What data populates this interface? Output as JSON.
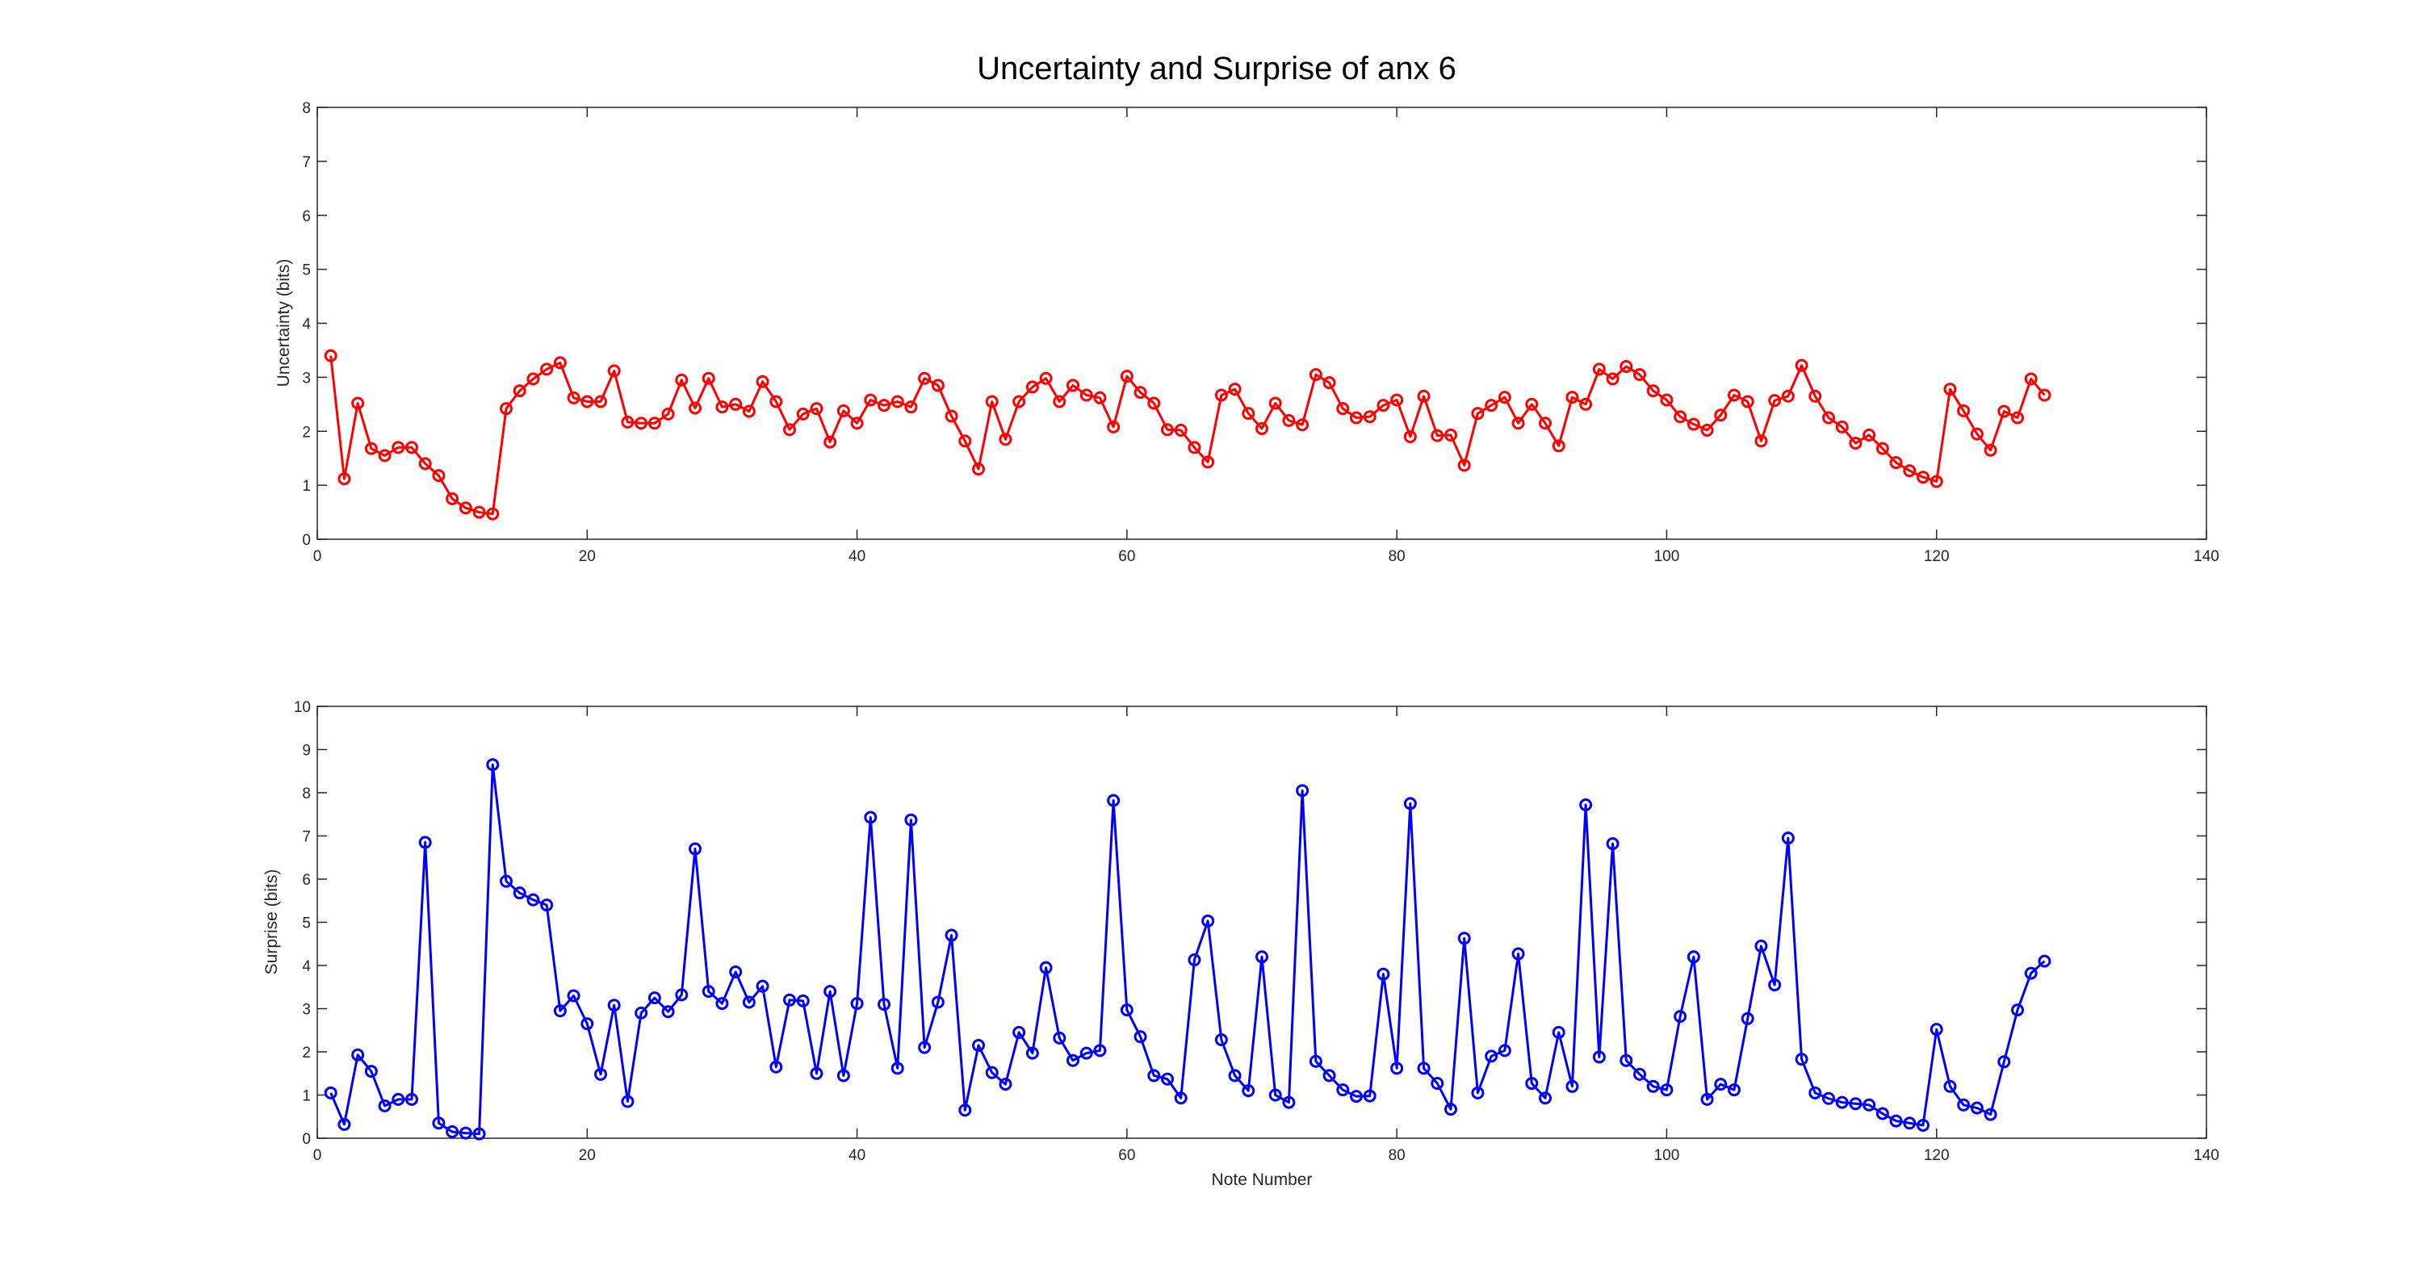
{
  "figure": {
    "title": "Uncertainty and Surprise of anx 6"
  },
  "chart_data": [
    {
      "type": "line",
      "marker": "circle",
      "xlabel": "",
      "ylabel": "Uncertainty (bits)",
      "xlim": [
        0,
        140
      ],
      "ylim": [
        0,
        8
      ],
      "xticks": [
        0,
        20,
        40,
        60,
        80,
        100,
        120,
        140
      ],
      "yticks": [
        0,
        1,
        2,
        3,
        4,
        5,
        6,
        7,
        8
      ],
      "grid": false,
      "color": "#ff0000",
      "x_start": 1,
      "values": [
        3.4,
        1.12,
        2.52,
        1.68,
        1.55,
        1.7,
        1.7,
        1.4,
        1.18,
        0.75,
        0.58,
        0.5,
        0.47,
        2.42,
        2.75,
        2.97,
        3.15,
        3.27,
        2.62,
        2.55,
        2.55,
        3.12,
        2.17,
        2.15,
        2.15,
        2.32,
        2.95,
        2.43,
        2.98,
        2.45,
        2.5,
        2.37,
        2.92,
        2.55,
        2.03,
        2.32,
        2.42,
        1.8,
        2.38,
        2.15,
        2.58,
        2.48,
        2.55,
        2.45,
        2.98,
        2.85,
        2.28,
        1.82,
        1.3,
        2.55,
        1.85,
        2.55,
        2.82,
        2.98,
        2.55,
        2.85,
        2.67,
        2.62,
        2.08,
        3.02,
        2.72,
        2.52,
        2.03,
        2.02,
        1.7,
        1.43,
        2.67,
        2.78,
        2.33,
        2.05,
        2.52,
        2.2,
        2.12,
        3.05,
        2.9,
        2.42,
        2.25,
        2.27,
        2.48,
        2.58,
        1.9,
        2.65,
        1.92,
        1.93,
        1.37,
        2.33,
        2.48,
        2.63,
        2.15,
        2.5,
        2.15,
        1.73,
        2.63,
        2.5,
        3.15,
        2.97,
        3.2,
        3.05,
        2.75,
        2.58,
        2.27,
        2.13,
        2.02,
        2.3,
        2.67,
        2.55,
        1.82,
        2.57,
        2.65,
        3.22,
        2.65,
        2.25,
        2.08,
        1.78,
        1.93,
        1.68,
        1.42,
        1.27,
        1.15,
        1.07,
        2.78,
        2.38,
        1.95,
        1.65,
        2.37,
        2.25,
        2.97,
        2.67
      ]
    },
    {
      "type": "line",
      "marker": "circle",
      "xlabel": "Note Number",
      "ylabel": "Surprise (bits)",
      "xlim": [
        0,
        140
      ],
      "ylim": [
        0,
        10
      ],
      "xticks": [
        0,
        20,
        40,
        60,
        80,
        100,
        120,
        140
      ],
      "yticks": [
        0,
        1,
        2,
        3,
        4,
        5,
        6,
        7,
        8,
        9,
        10
      ],
      "grid": false,
      "color": "#0000ff",
      "x_start": 1,
      "values": [
        1.05,
        0.32,
        1.93,
        1.55,
        0.75,
        0.9,
        0.9,
        6.85,
        0.35,
        0.15,
        0.12,
        0.1,
        8.65,
        5.95,
        5.68,
        5.52,
        5.4,
        2.95,
        3.3,
        2.65,
        1.48,
        3.08,
        0.85,
        2.9,
        3.25,
        2.93,
        3.32,
        6.7,
        3.4,
        3.12,
        3.85,
        3.15,
        3.52,
        1.65,
        3.2,
        3.18,
        1.5,
        3.4,
        1.45,
        3.12,
        7.43,
        3.1,
        1.62,
        7.37,
        2.1,
        3.15,
        4.7,
        0.65,
        2.15,
        1.52,
        1.25,
        2.45,
        1.97,
        3.95,
        2.32,
        1.8,
        1.97,
        2.03,
        7.82,
        2.97,
        2.35,
        1.45,
        1.37,
        0.93,
        4.13,
        5.03,
        2.28,
        1.45,
        1.1,
        4.2,
        1.0,
        0.83,
        8.05,
        1.78,
        1.45,
        1.12,
        0.97,
        0.98,
        3.8,
        1.62,
        7.75,
        1.62,
        1.27,
        0.67,
        4.63,
        1.05,
        1.9,
        2.03,
        4.27,
        1.27,
        0.93,
        2.45,
        1.2,
        7.72,
        1.88,
        6.82,
        1.8,
        1.48,
        1.2,
        1.12,
        2.82,
        4.2,
        0.9,
        1.25,
        1.12,
        2.77,
        4.45,
        3.55,
        6.95,
        1.83,
        1.05,
        0.92,
        0.83,
        0.8,
        0.77,
        0.57,
        0.4,
        0.35,
        0.3,
        2.52,
        1.2,
        0.77,
        0.7,
        0.55,
        1.77,
        2.97,
        3.82,
        4.1
      ]
    }
  ]
}
